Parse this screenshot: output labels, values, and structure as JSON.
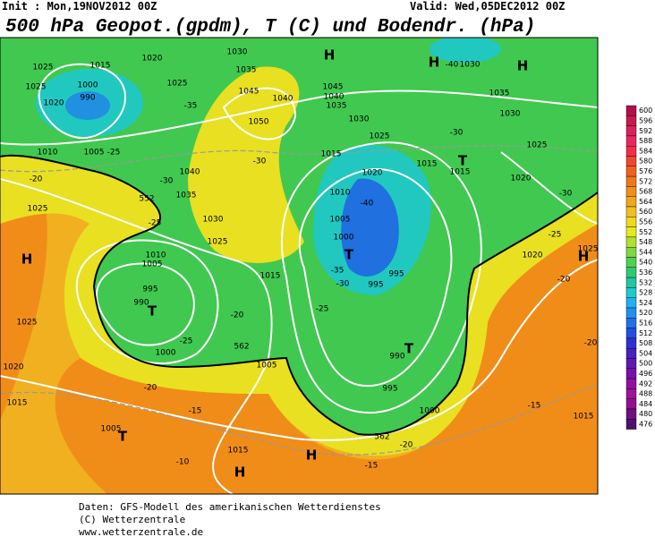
{
  "header": {
    "init": "Init : Mon,19NOV2012 00Z",
    "valid": "Valid: Wed,05DEC2012 00Z",
    "title": "500 hPa Geopot.(gpdm), T (C) und Bodendr. (hPa)"
  },
  "scale": {
    "values": [
      600,
      596,
      592,
      588,
      584,
      580,
      576,
      572,
      568,
      564,
      560,
      556,
      552,
      548,
      544,
      540,
      536,
      532,
      528,
      524,
      520,
      516,
      512,
      508,
      504,
      500,
      496,
      492,
      488,
      484,
      480,
      476
    ],
    "colors": [
      "#b0104a",
      "#c81850",
      "#d8205a",
      "#e82860",
      "#f03048",
      "#f04830",
      "#f06020",
      "#f07818",
      "#f09018",
      "#f0a818",
      "#f0c020",
      "#f0d820",
      "#e8e820",
      "#b0e030",
      "#80d840",
      "#50d050",
      "#30c870",
      "#20c8a0",
      "#20c8d0",
      "#20b0f0",
      "#2090f0",
      "#2070e8",
      "#2050e0",
      "#3030d0",
      "#4820c0",
      "#6018b0",
      "#7810a8",
      "#9010a0",
      "#a01098",
      "#901090",
      "#701080",
      "#501070"
    ]
  },
  "map": {
    "labels": [
      "1025",
      "1015",
      "1020",
      "1030",
      "1035",
      "H",
      "1045",
      "1040",
      "1035",
      "1030",
      "-40",
      "1030",
      "H",
      "H",
      "1035",
      "1030",
      "1025",
      "1020",
      "990",
      "1000",
      "1045",
      "1050",
      "1040",
      "1025",
      "-35",
      "1010",
      "1005",
      "-25",
      "1015",
      "1025",
      "-30",
      "1015",
      "T",
      "1015",
      "1025",
      "1020",
      "1040",
      "1035",
      "-30",
      "-30",
      "552",
      "1030",
      "1025",
      "-25",
      "1010",
      "1020",
      "-40",
      "1005",
      "1000",
      "T",
      "-35",
      "-30",
      "995",
      "995",
      "1025",
      "-20",
      "H",
      "1025",
      "1010",
      "1005",
      "995",
      "990",
      "T",
      "-20",
      "-25",
      "1000",
      "562",
      "1005",
      "1020",
      "1015",
      "-20",
      "-15",
      "1005",
      "T",
      "-10",
      "1015",
      "H",
      "H",
      "-15",
      "562",
      "-20",
      "1000",
      "995",
      "990",
      "T",
      "1015",
      "-25",
      "1025",
      "H",
      "1020",
      "-25",
      "-20",
      "-30",
      "-15",
      "1015",
      "-20"
    ]
  },
  "footer": {
    "lines": [
      "Daten: GFS-Modell des amerikanischen Wetterdienstes",
      "(C) Wetterzentrale",
      "www.wetterzentrale.de"
    ]
  }
}
